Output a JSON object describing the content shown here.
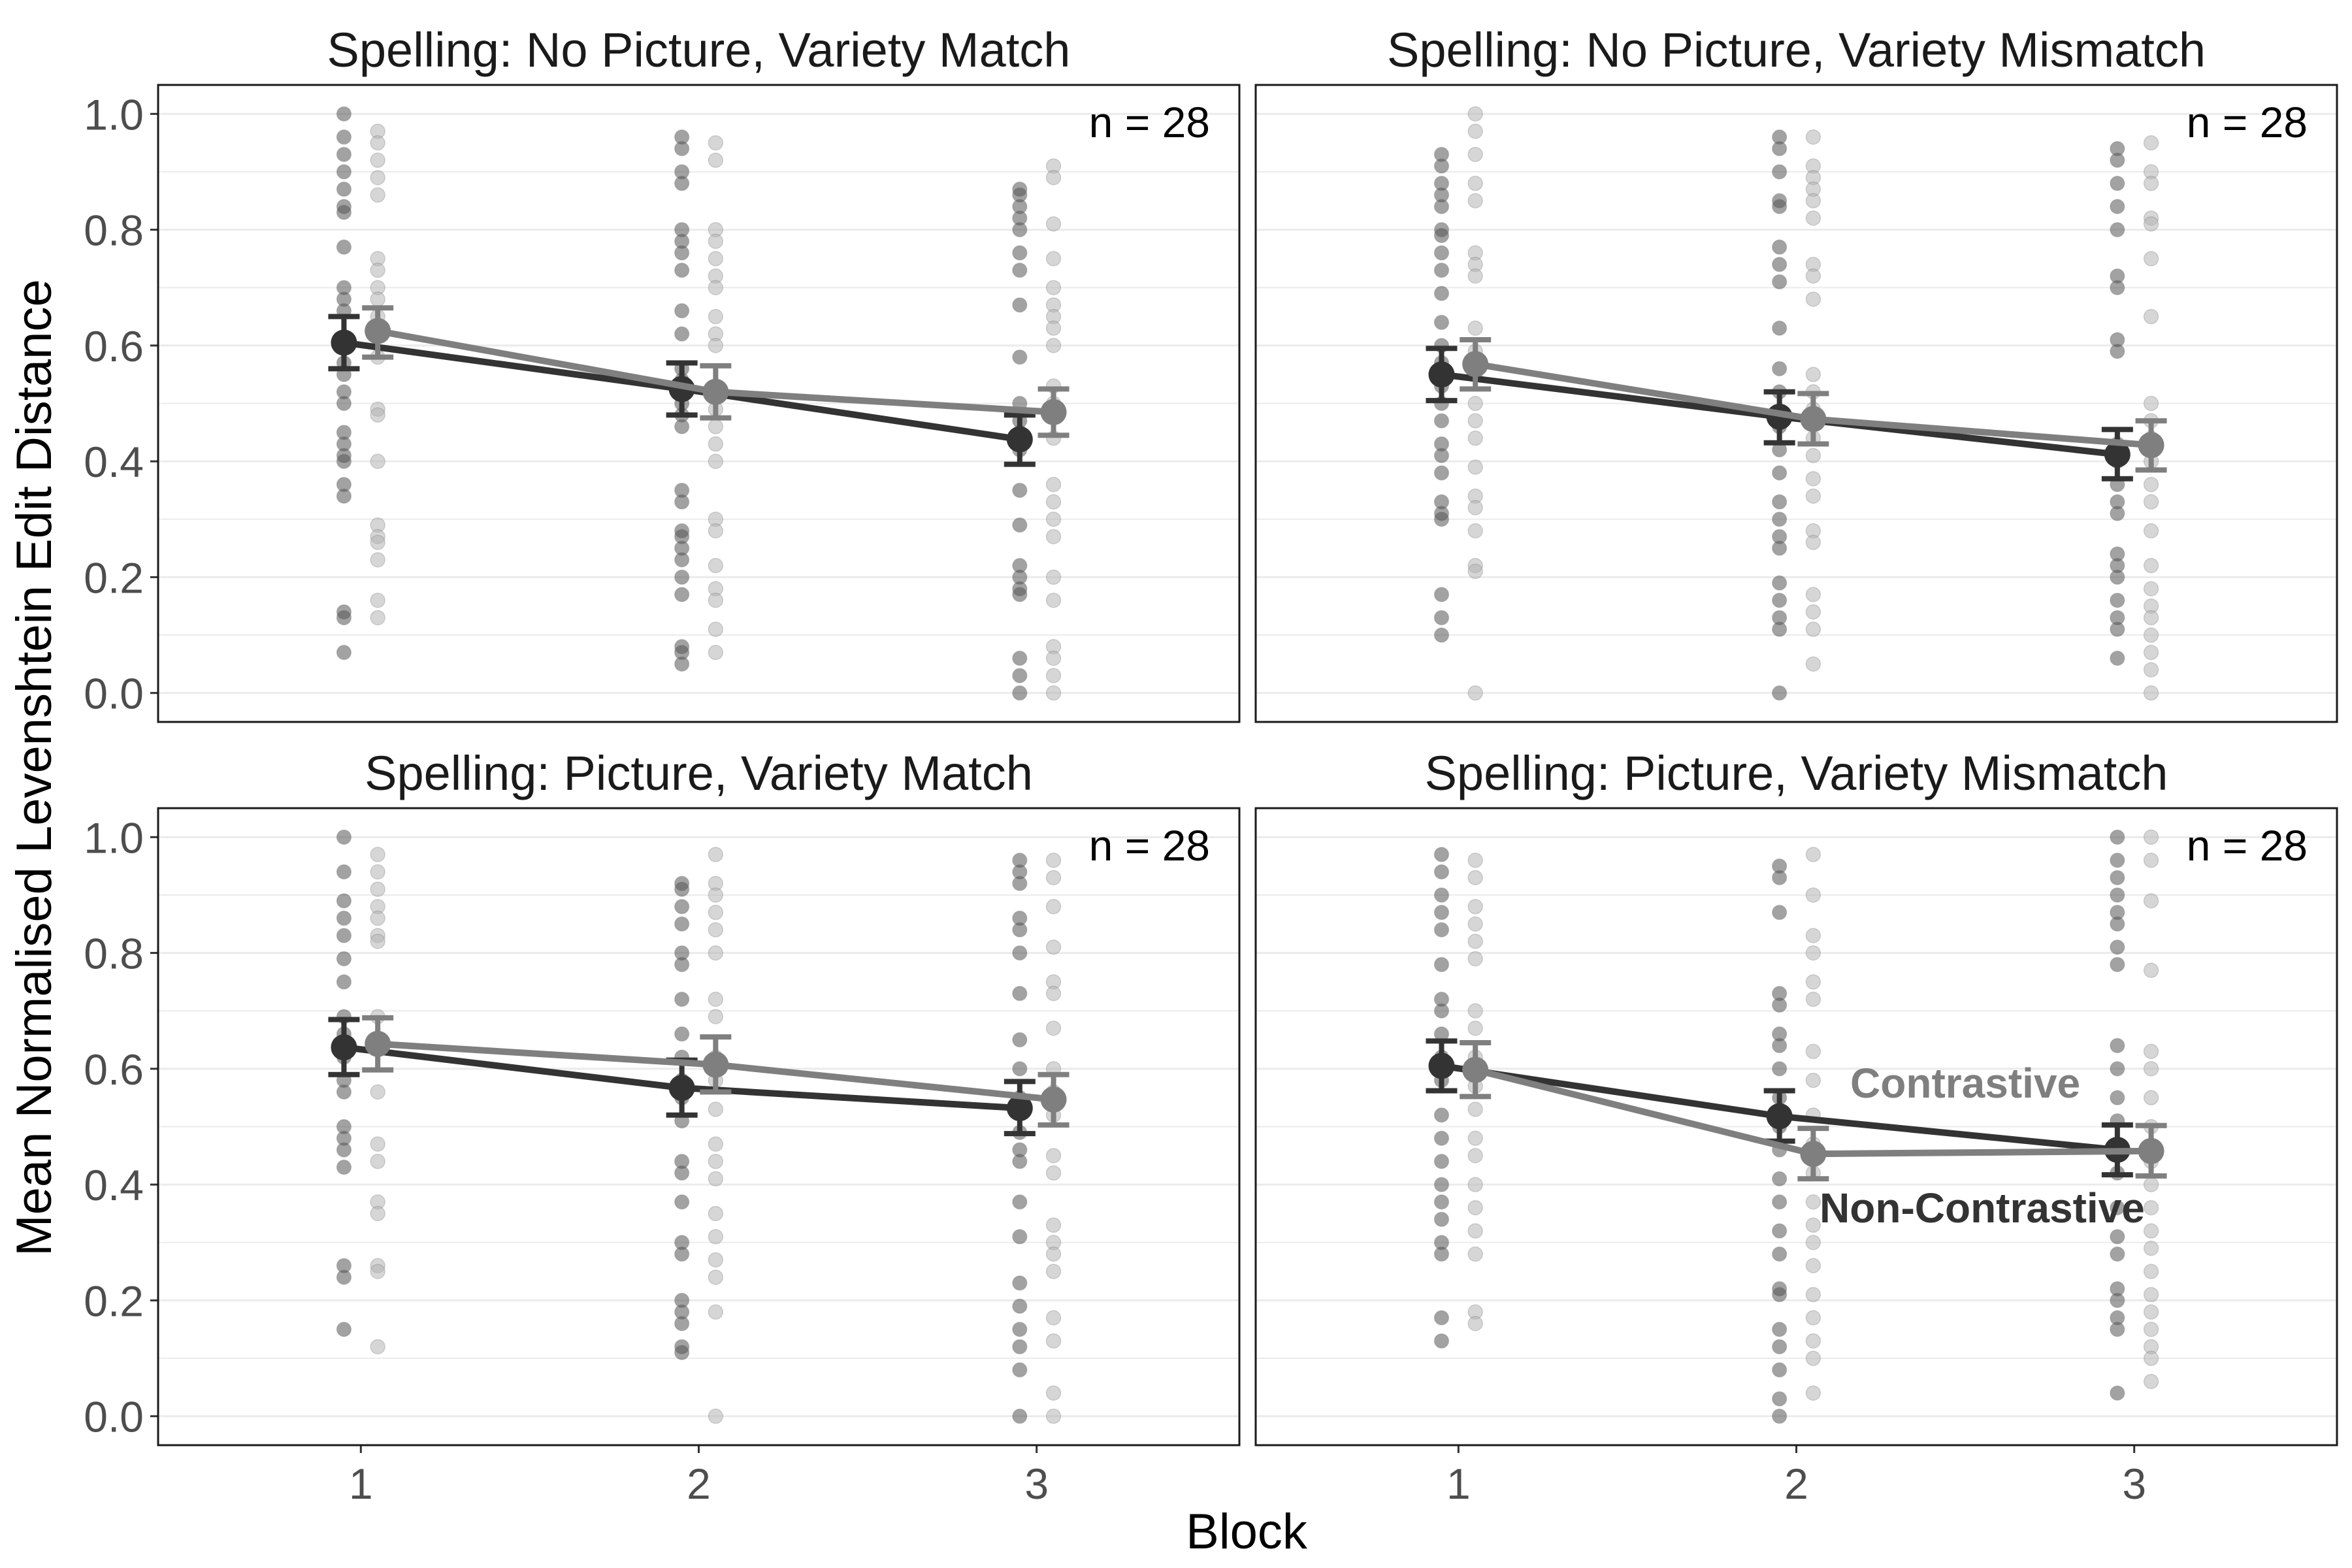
{
  "figure": {
    "ylabel": "Mean Normalised Levenshtein Edit Distance",
    "xlabel": "Block"
  },
  "colors": {
    "background": "#ffffff",
    "panel_border": "#1a1a1a",
    "grid": "#ebebeb",
    "tick_text": "#4d4d4d",
    "title_text": "#1a1a1a",
    "non_contrastive": "#333333",
    "contrastive": "#7f7f7f",
    "point_non_contrastive": "#555555",
    "point_contrastive": "#b5b5b5"
  },
  "chart_data": [
    {
      "type": "line",
      "title": "Spelling: No Picture, Variety Match",
      "annotation": "n =  28",
      "x": [
        1,
        2,
        3
      ],
      "xlim": [
        0.4,
        3.6
      ],
      "ylim": [
        -0.05,
        1.05
      ],
      "yticks": [
        "0.0",
        "0.2",
        "0.4",
        "0.6",
        "0.8",
        "1.0"
      ],
      "series": [
        {
          "name": "Non-Contrastive",
          "values": [
            0.605,
            0.525,
            0.438
          ],
          "ci_low": [
            0.56,
            0.48,
            0.395
          ],
          "ci_high": [
            0.65,
            0.57,
            0.48
          ],
          "points": [
            [
              1.0,
              0.96,
              0.93,
              0.9,
              0.87,
              0.84,
              0.83,
              0.77,
              0.7,
              0.68,
              0.66,
              0.6,
              0.57,
              0.55,
              0.52,
              0.5,
              0.45,
              0.43,
              0.41,
              0.4,
              0.36,
              0.34,
              0.14,
              0.13,
              0.07
            ],
            [
              0.96,
              0.94,
              0.9,
              0.88,
              0.8,
              0.78,
              0.76,
              0.73,
              0.66,
              0.62,
              0.56,
              0.54,
              0.5,
              0.48,
              0.46,
              0.35,
              0.33,
              0.28,
              0.27,
              0.25,
              0.23,
              0.2,
              0.17,
              0.08,
              0.07,
              0.05
            ],
            [
              0.87,
              0.86,
              0.84,
              0.82,
              0.8,
              0.76,
              0.73,
              0.67,
              0.58,
              0.5,
              0.47,
              0.45,
              0.42,
              0.35,
              0.29,
              0.22,
              0.2,
              0.18,
              0.17,
              0.06,
              0.03,
              0.0
            ]
          ]
        },
        {
          "name": "Contrastive",
          "values": [
            0.625,
            0.52,
            0.485
          ],
          "ci_low": [
            0.58,
            0.475,
            0.445
          ],
          "ci_high": [
            0.665,
            0.565,
            0.525
          ],
          "points": [
            [
              0.97,
              0.95,
              0.92,
              0.89,
              0.86,
              0.75,
              0.73,
              0.7,
              0.68,
              0.65,
              0.62,
              0.58,
              0.49,
              0.48,
              0.4,
              0.29,
              0.27,
              0.26,
              0.23,
              0.16,
              0.13
            ],
            [
              0.95,
              0.92,
              0.8,
              0.78,
              0.75,
              0.72,
              0.7,
              0.65,
              0.62,
              0.6,
              0.52,
              0.49,
              0.46,
              0.43,
              0.4,
              0.3,
              0.28,
              0.22,
              0.18,
              0.16,
              0.11,
              0.07
            ],
            [
              0.91,
              0.89,
              0.81,
              0.75,
              0.7,
              0.67,
              0.65,
              0.63,
              0.6,
              0.53,
              0.5,
              0.44,
              0.36,
              0.33,
              0.3,
              0.27,
              0.2,
              0.16,
              0.08,
              0.06,
              0.03,
              0.0
            ]
          ]
        }
      ]
    },
    {
      "type": "line",
      "title": "Spelling: No Picture, Variety Mismatch",
      "annotation": "n =  28",
      "x": [
        1,
        2,
        3
      ],
      "xlim": [
        0.4,
        3.6
      ],
      "ylim": [
        -0.05,
        1.05
      ],
      "yticks": [
        "0.0",
        "0.2",
        "0.4",
        "0.6",
        "0.8",
        "1.0"
      ],
      "series": [
        {
          "name": "Non-Contrastive",
          "values": [
            0.55,
            0.477,
            0.412
          ],
          "ci_low": [
            0.505,
            0.432,
            0.37
          ],
          "ci_high": [
            0.595,
            0.52,
            0.455
          ],
          "points": [
            [
              0.93,
              0.91,
              0.88,
              0.86,
              0.84,
              0.8,
              0.79,
              0.76,
              0.73,
              0.69,
              0.64,
              0.6,
              0.57,
              0.53,
              0.5,
              0.47,
              0.43,
              0.41,
              0.38,
              0.33,
              0.31,
              0.3,
              0.17,
              0.13,
              0.1
            ],
            [
              0.96,
              0.94,
              0.9,
              0.85,
              0.84,
              0.77,
              0.74,
              0.71,
              0.63,
              0.56,
              0.52,
              0.46,
              0.42,
              0.38,
              0.33,
              0.3,
              0.27,
              0.25,
              0.19,
              0.16,
              0.13,
              0.11,
              0.0
            ],
            [
              0.94,
              0.92,
              0.88,
              0.84,
              0.8,
              0.72,
              0.7,
              0.61,
              0.59,
              0.43,
              0.4,
              0.36,
              0.33,
              0.31,
              0.24,
              0.22,
              0.2,
              0.16,
              0.13,
              0.11,
              0.06
            ]
          ]
        },
        {
          "name": "Contrastive",
          "values": [
            0.568,
            0.473,
            0.428
          ],
          "ci_low": [
            0.525,
            0.43,
            0.385
          ],
          "ci_high": [
            0.61,
            0.517,
            0.47
          ],
          "points": [
            [
              1.0,
              0.97,
              0.93,
              0.88,
              0.85,
              0.76,
              0.74,
              0.72,
              0.63,
              0.59,
              0.55,
              0.5,
              0.47,
              0.44,
              0.39,
              0.34,
              0.32,
              0.28,
              0.22,
              0.21,
              0.0
            ],
            [
              0.96,
              0.91,
              0.89,
              0.87,
              0.85,
              0.82,
              0.74,
              0.72,
              0.68,
              0.55,
              0.52,
              0.49,
              0.44,
              0.41,
              0.37,
              0.34,
              0.28,
              0.26,
              0.17,
              0.14,
              0.11,
              0.05
            ],
            [
              0.95,
              0.9,
              0.88,
              0.82,
              0.81,
              0.75,
              0.65,
              0.5,
              0.47,
              0.44,
              0.4,
              0.36,
              0.33,
              0.28,
              0.22,
              0.18,
              0.15,
              0.13,
              0.1,
              0.07,
              0.04,
              0.0
            ]
          ]
        }
      ]
    },
    {
      "type": "line",
      "title": "Spelling: Picture, Variety Match",
      "annotation": "n =  28",
      "x": [
        1,
        2,
        3
      ],
      "xlim": [
        0.4,
        3.6
      ],
      "ylim": [
        -0.05,
        1.05
      ],
      "yticks": [
        "0.0",
        "0.2",
        "0.4",
        "0.6",
        "0.8",
        "1.0"
      ],
      "series": [
        {
          "name": "Non-Contrastive",
          "values": [
            0.637,
            0.567,
            0.532
          ],
          "ci_low": [
            0.59,
            0.52,
            0.488
          ],
          "ci_high": [
            0.685,
            0.615,
            0.578
          ],
          "points": [
            [
              1.0,
              0.94,
              0.89,
              0.86,
              0.83,
              0.79,
              0.75,
              0.69,
              0.66,
              0.62,
              0.58,
              0.56,
              0.5,
              0.48,
              0.46,
              0.43,
              0.26,
              0.24,
              0.15
            ],
            [
              0.92,
              0.91,
              0.88,
              0.85,
              0.8,
              0.78,
              0.72,
              0.66,
              0.62,
              0.58,
              0.55,
              0.51,
              0.44,
              0.42,
              0.37,
              0.3,
              0.28,
              0.2,
              0.18,
              0.16,
              0.12,
              0.11
            ],
            [
              0.96,
              0.94,
              0.92,
              0.86,
              0.84,
              0.8,
              0.73,
              0.65,
              0.6,
              0.55,
              0.49,
              0.46,
              0.44,
              0.37,
              0.31,
              0.23,
              0.19,
              0.15,
              0.12,
              0.08,
              0.0
            ]
          ]
        },
        {
          "name": "Contrastive",
          "values": [
            0.643,
            0.607,
            0.547
          ],
          "ci_low": [
            0.598,
            0.56,
            0.503
          ],
          "ci_high": [
            0.688,
            0.655,
            0.59
          ],
          "points": [
            [
              0.97,
              0.94,
              0.91,
              0.88,
              0.86,
              0.83,
              0.82,
              0.69,
              0.64,
              0.56,
              0.47,
              0.44,
              0.37,
              0.35,
              0.26,
              0.25,
              0.12
            ],
            [
              0.97,
              0.92,
              0.9,
              0.87,
              0.84,
              0.8,
              0.72,
              0.69,
              0.62,
              0.58,
              0.53,
              0.47,
              0.44,
              0.41,
              0.35,
              0.31,
              0.27,
              0.24,
              0.18,
              0.0
            ],
            [
              0.96,
              0.93,
              0.88,
              0.81,
              0.75,
              0.73,
              0.67,
              0.6,
              0.56,
              0.52,
              0.45,
              0.42,
              0.33,
              0.3,
              0.28,
              0.25,
              0.17,
              0.13,
              0.04,
              0.0
            ]
          ]
        }
      ]
    },
    {
      "type": "line",
      "title": "Spelling: Picture, Variety Mismatch",
      "annotation": "n =  28",
      "x": [
        1,
        2,
        3
      ],
      "xlim": [
        0.4,
        3.6
      ],
      "ylim": [
        -0.05,
        1.05
      ],
      "yticks": [
        "0.0",
        "0.2",
        "0.4",
        "0.6",
        "0.8",
        "1.0"
      ],
      "legend_labels": [
        {
          "text": "Contrastive",
          "x": 2.5,
          "y": 0.55
        },
        {
          "text": "Non-Contrastive",
          "x": 2.55,
          "y": 0.335
        }
      ],
      "series": [
        {
          "name": "Non-Contrastive",
          "values": [
            0.605,
            0.518,
            0.46
          ],
          "ci_low": [
            0.562,
            0.475,
            0.417
          ],
          "ci_high": [
            0.648,
            0.562,
            0.503
          ],
          "points": [
            [
              0.97,
              0.94,
              0.9,
              0.87,
              0.84,
              0.78,
              0.72,
              0.7,
              0.66,
              0.62,
              0.58,
              0.52,
              0.48,
              0.44,
              0.4,
              0.37,
              0.34,
              0.3,
              0.28,
              0.17,
              0.13
            ],
            [
              0.95,
              0.93,
              0.87,
              0.73,
              0.71,
              0.66,
              0.64,
              0.6,
              0.55,
              0.5,
              0.46,
              0.41,
              0.37,
              0.32,
              0.28,
              0.22,
              0.21,
              0.15,
              0.12,
              0.08,
              0.03,
              0.0
            ],
            [
              1.0,
              0.96,
              0.93,
              0.9,
              0.87,
              0.85,
              0.81,
              0.78,
              0.64,
              0.6,
              0.55,
              0.51,
              0.47,
              0.42,
              0.36,
              0.31,
              0.28,
              0.22,
              0.2,
              0.17,
              0.15,
              0.04
            ]
          ]
        },
        {
          "name": "Contrastive",
          "values": [
            0.598,
            0.453,
            0.458
          ],
          "ci_low": [
            0.552,
            0.41,
            0.415
          ],
          "ci_high": [
            0.645,
            0.497,
            0.502
          ],
          "points": [
            [
              0.96,
              0.93,
              0.88,
              0.85,
              0.82,
              0.79,
              0.7,
              0.67,
              0.62,
              0.57,
              0.53,
              0.48,
              0.45,
              0.4,
              0.36,
              0.32,
              0.28,
              0.18,
              0.16
            ],
            [
              0.97,
              0.9,
              0.83,
              0.8,
              0.75,
              0.72,
              0.63,
              0.58,
              0.52,
              0.47,
              0.42,
              0.37,
              0.33,
              0.3,
              0.26,
              0.21,
              0.17,
              0.13,
              0.1,
              0.04
            ],
            [
              1.0,
              0.96,
              0.89,
              0.77,
              0.63,
              0.6,
              0.55,
              0.5,
              0.44,
              0.4,
              0.36,
              0.32,
              0.29,
              0.25,
              0.21,
              0.18,
              0.15,
              0.12,
              0.1,
              0.06
            ]
          ]
        }
      ]
    }
  ]
}
